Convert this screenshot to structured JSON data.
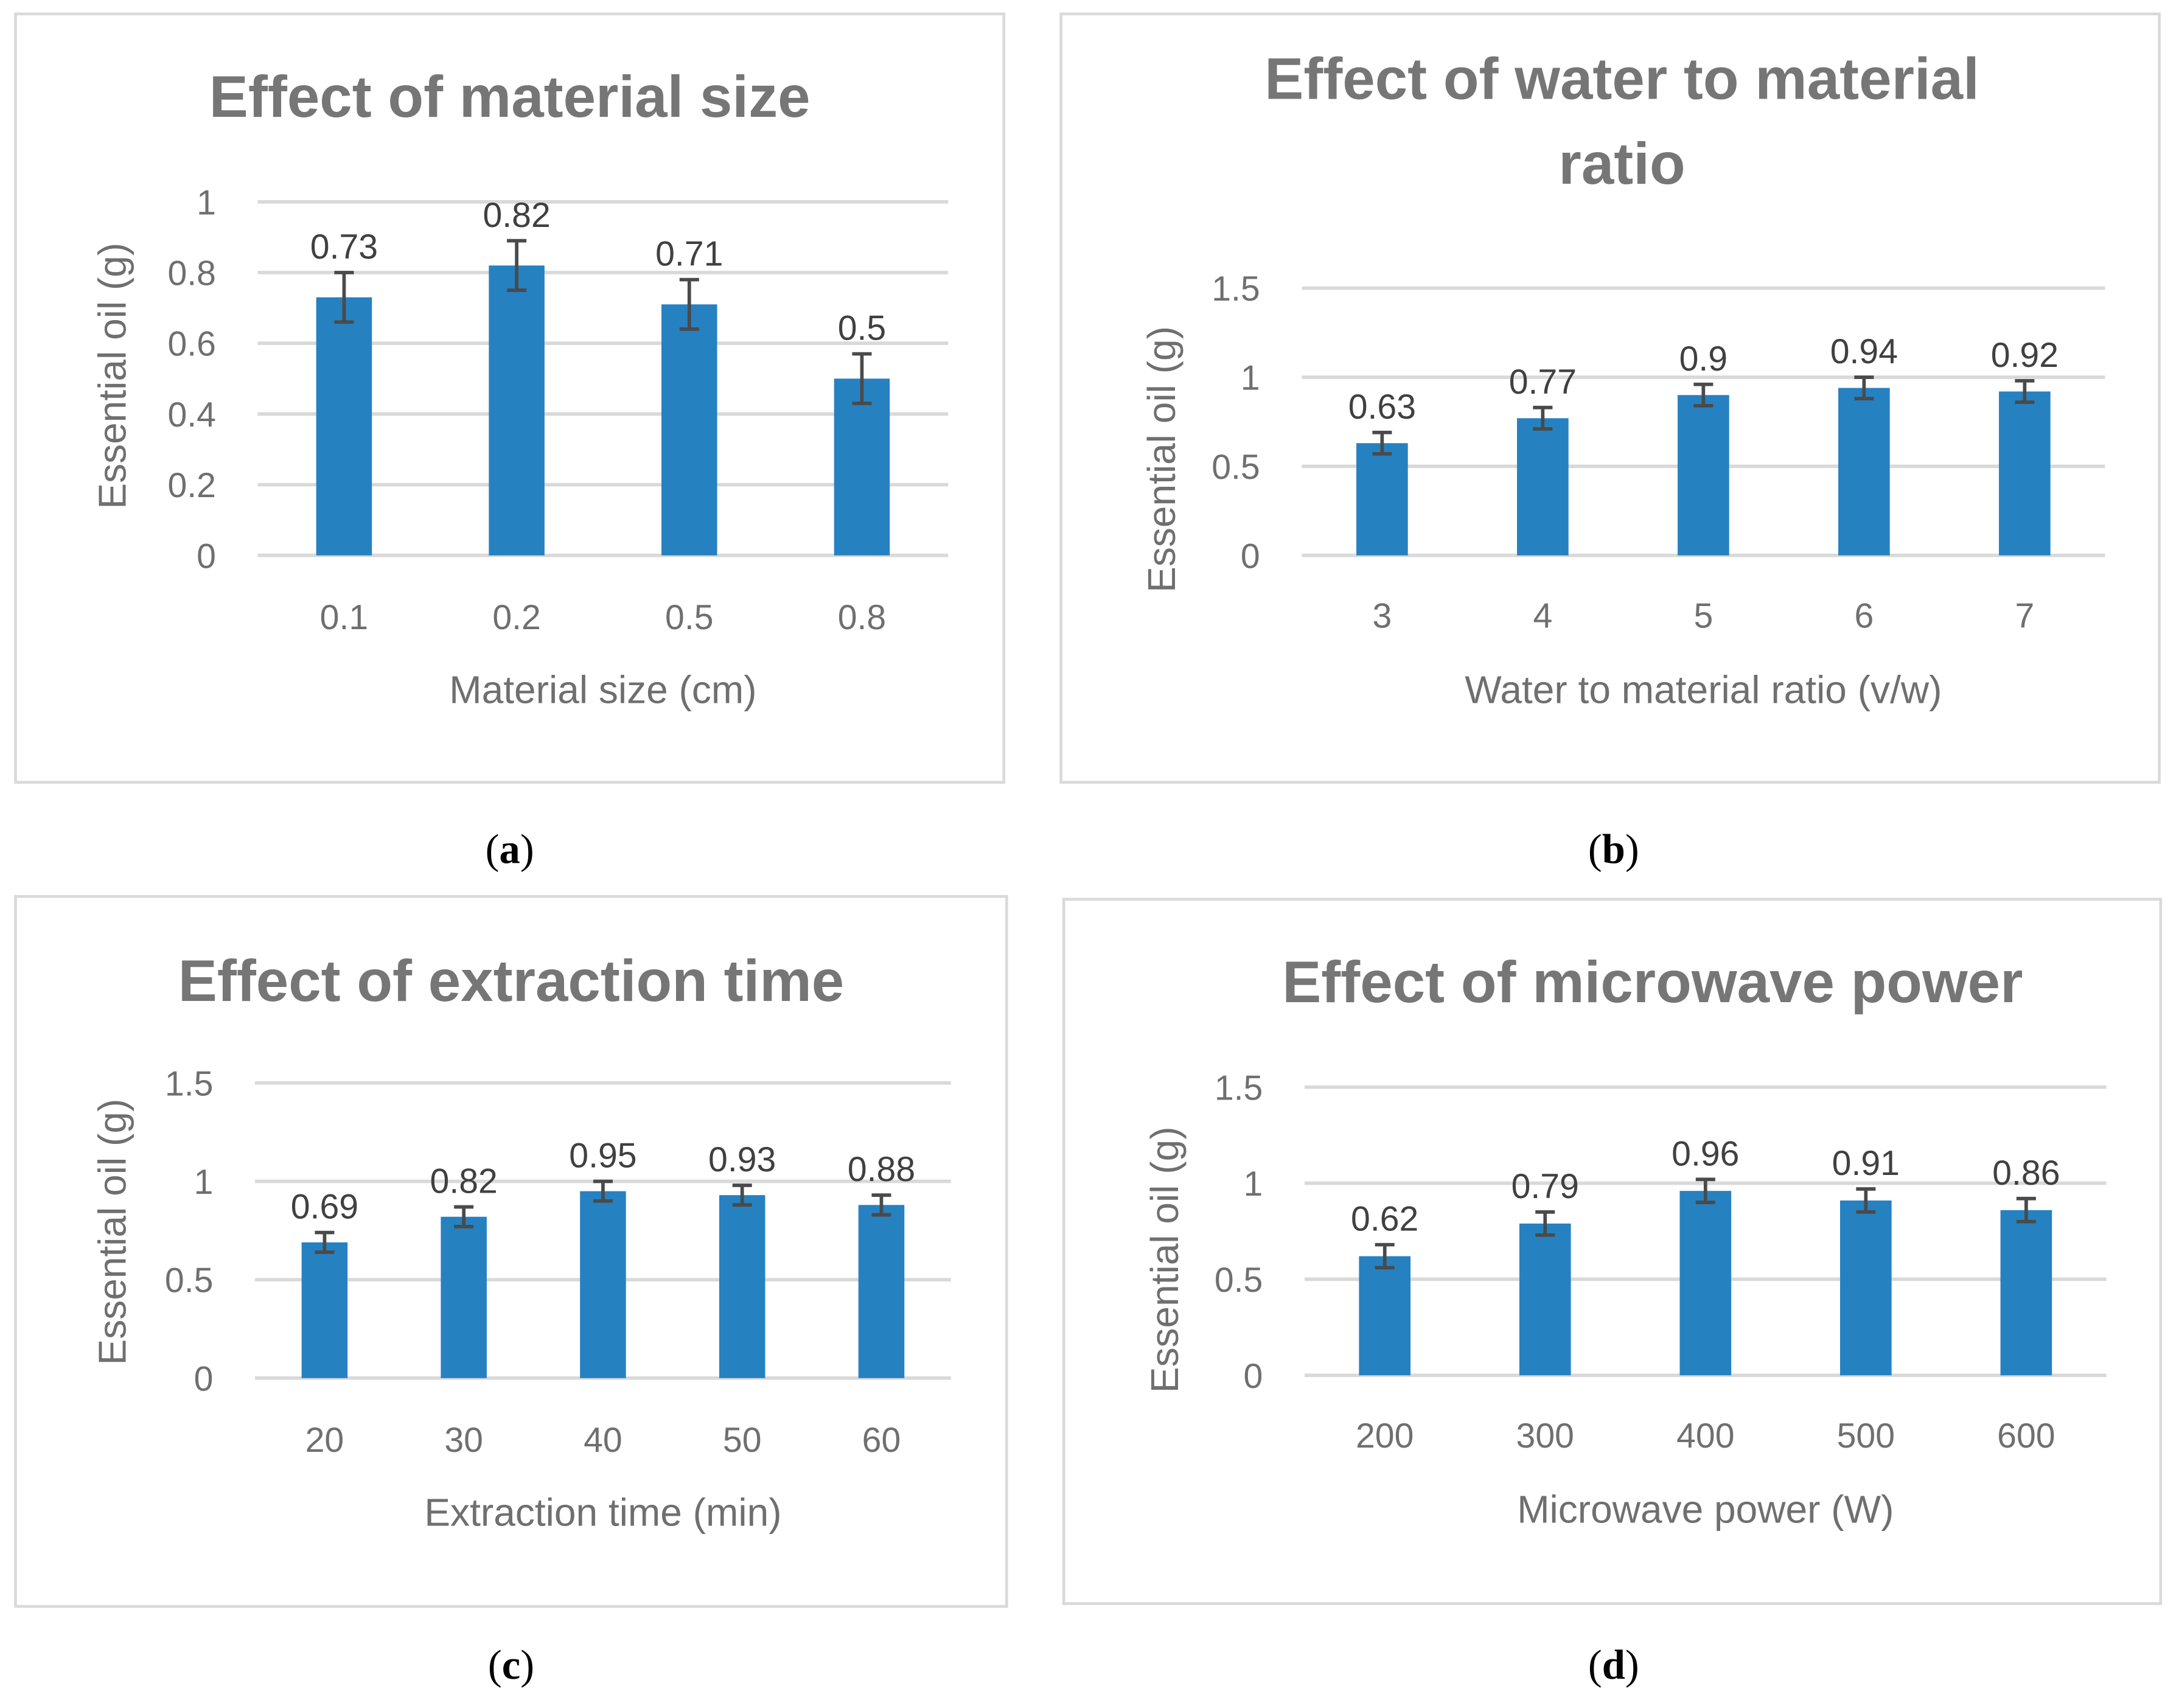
{
  "chart_data": [
    {
      "type": "bar",
      "panel": "a",
      "caption": "(a)",
      "title": [
        "Effect of material size"
      ],
      "categories": [
        "0.1",
        "0.2",
        "0.5",
        "0.8"
      ],
      "values": [
        0.73,
        0.82,
        0.71,
        0.5
      ],
      "errors": [
        0.07,
        0.07,
        0.07,
        0.07
      ],
      "xlabel": "Material size (cm)",
      "ylabel": "Essential oil (g)",
      "ylim": [
        0,
        1
      ],
      "yticks": [
        0,
        0.2,
        0.4,
        0.6,
        0.8,
        1
      ],
      "grid": true,
      "color": "#2681c1"
    },
    {
      "type": "bar",
      "panel": "b",
      "caption": "(b)",
      "title": [
        "Effect of water to material",
        "ratio"
      ],
      "categories": [
        "3",
        "4",
        "5",
        "6",
        "7"
      ],
      "values": [
        0.63,
        0.77,
        0.9,
        0.94,
        0.92
      ],
      "errors": [
        0.06,
        0.06,
        0.06,
        0.06,
        0.06
      ],
      "xlabel": "Water to material ratio (v/w)",
      "ylabel": "Essential oil (g)",
      "ylim": [
        0,
        1.5
      ],
      "yticks": [
        0,
        0.5,
        1,
        1.5
      ],
      "grid": true,
      "color": "#2681c1"
    },
    {
      "type": "bar",
      "panel": "c",
      "caption": "(c)",
      "title": [
        "Effect of extraction time"
      ],
      "categories": [
        "20",
        "30",
        "40",
        "50",
        "60"
      ],
      "values": [
        0.69,
        0.82,
        0.95,
        0.93,
        0.88
      ],
      "errors": [
        0.05,
        0.05,
        0.05,
        0.05,
        0.05
      ],
      "xlabel": "Extraction time (min)",
      "ylabel": "Essential oil (g)",
      "ylim": [
        0,
        1.5
      ],
      "yticks": [
        0,
        0.5,
        1,
        1.5
      ],
      "grid": true,
      "color": "#2681c1"
    },
    {
      "type": "bar",
      "panel": "d",
      "caption": "(d)",
      "title": [
        "Effect of microwave power"
      ],
      "categories": [
        "200",
        "300",
        "400",
        "500",
        "600"
      ],
      "values": [
        0.62,
        0.79,
        0.96,
        0.91,
        0.86
      ],
      "errors": [
        0.06,
        0.06,
        0.06,
        0.06,
        0.06
      ],
      "xlabel": "Microwave power (W)",
      "ylabel": "Essential oil (g)",
      "ylim": [
        0,
        1.5
      ],
      "yticks": [
        0,
        0.5,
        1,
        1.5
      ],
      "grid": true,
      "color": "#2681c1"
    }
  ]
}
